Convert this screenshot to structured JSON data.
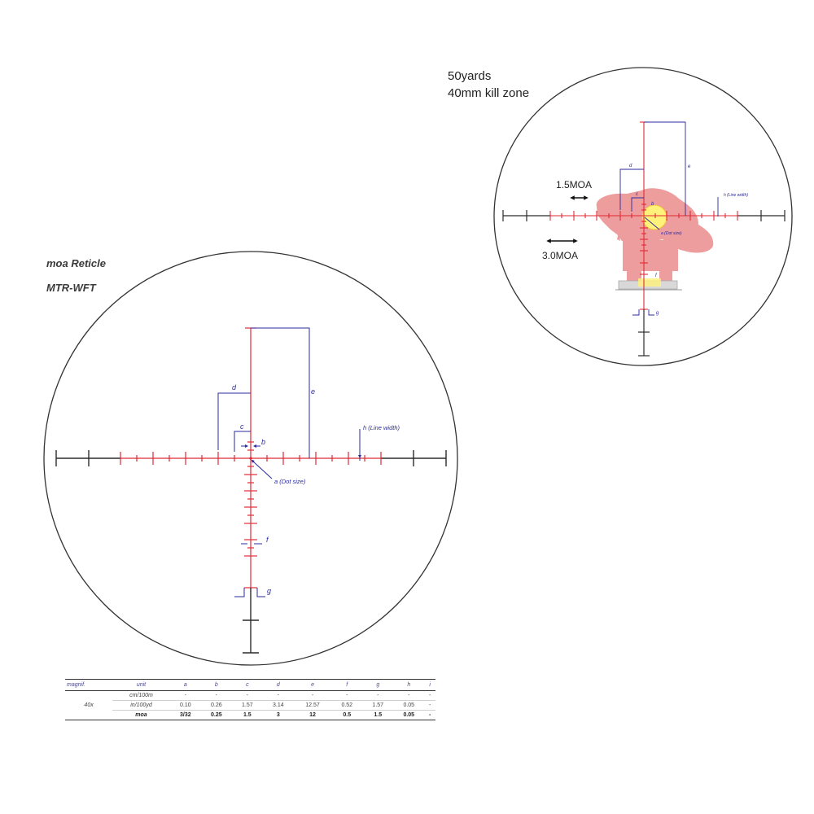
{
  "main_reticle": {
    "title_line1": "moa Reticle",
    "title_line2": "MTR-WFT",
    "labels": {
      "a": "a (Dot size)",
      "b": "b",
      "c": "c",
      "d": "d",
      "e": "e",
      "f": "f",
      "g": "g",
      "h": "h (Line width)"
    }
  },
  "kill_zone_view": {
    "line1": "50yards",
    "line2": "40mm kill zone",
    "marker_1_5": "1.5MOA",
    "marker_3_0": "3.0MOA",
    "labels": {
      "a": "a (Dot size)",
      "b": "b",
      "c": "c",
      "d": "d",
      "e": "e",
      "f": "f",
      "g": "g",
      "h": "h (Line width)"
    }
  },
  "spec_table": {
    "headers": [
      "magnif.",
      "unit",
      "a",
      "b",
      "c",
      "d",
      "e",
      "f",
      "g",
      "h",
      "i"
    ],
    "magnification": "40x",
    "rows": [
      {
        "unit": "cm/100m",
        "values": [
          "-",
          "-",
          "-",
          "-",
          "-",
          "-",
          "-",
          "-",
          "-"
        ]
      },
      {
        "unit": "in/100yd",
        "values": [
          "0.10",
          "0.26",
          "1.57",
          "3.14",
          "12.57",
          "0.52",
          "1.57",
          "0.05",
          "-"
        ]
      },
      {
        "unit": "moa",
        "values": [
          "3/32",
          "0.25",
          "1.5",
          "3",
          "12",
          "0.5",
          "1.5",
          "0.05",
          "-"
        ]
      }
    ]
  },
  "colors": {
    "reticle_red": "#e02a35",
    "reticle_black": "#2b2b2b",
    "dimension_blue": "#2a2a9e",
    "target_pink": "#eb8c8c",
    "kill_zone_yellow": "#fff27a"
  }
}
